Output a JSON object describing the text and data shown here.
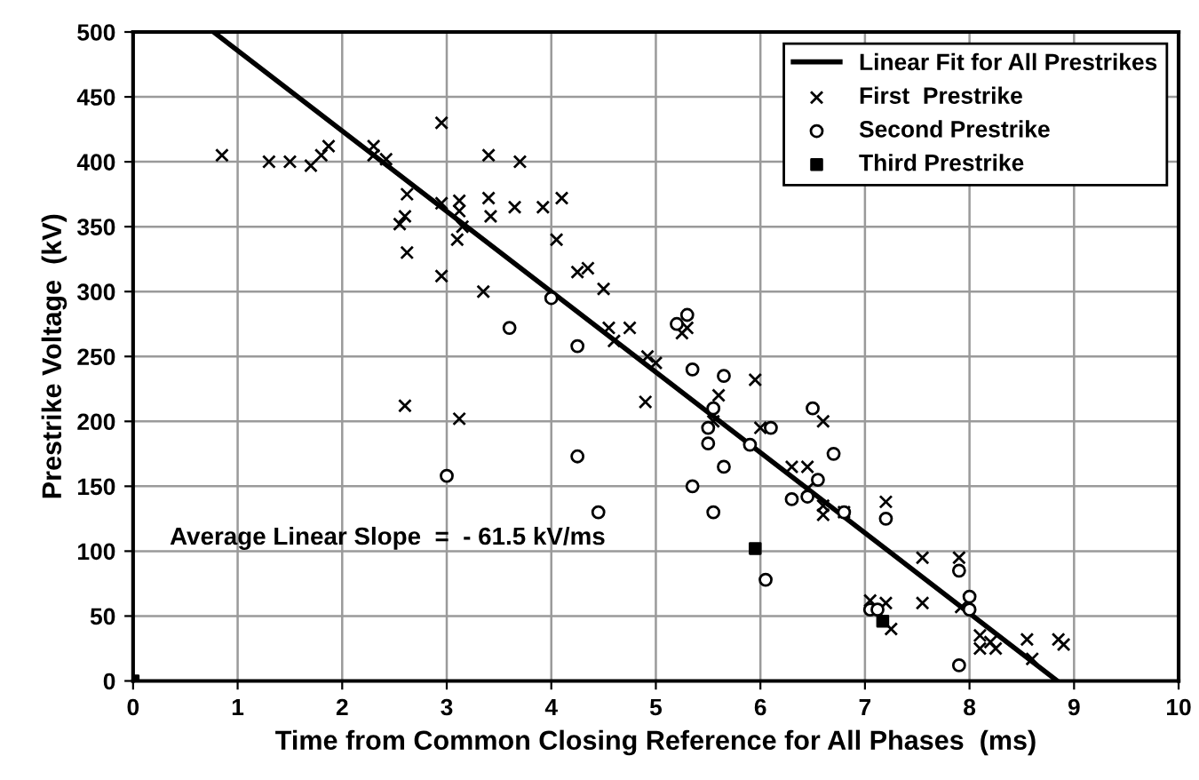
{
  "chart_data": {
    "type": "scatter",
    "xlabel": "Time from Common Closing Reference for All Phases  (ms)",
    "ylabel": "Prestrike Voltage  (kV)",
    "xlim": [
      0,
      10
    ],
    "ylim": [
      0,
      500
    ],
    "xticks": [
      0,
      1,
      2,
      3,
      4,
      5,
      6,
      7,
      8,
      9,
      10
    ],
    "yticks": [
      0,
      50,
      100,
      150,
      200,
      250,
      300,
      350,
      400,
      450,
      500
    ],
    "grid": true,
    "legend": "top right",
    "annotations": [
      "Average Linear Slope  =  - 61.5 kV/ms"
    ],
    "series": [
      {
        "name": "Linear Fit for All Prestrikes",
        "type": "line",
        "color": "#000000",
        "marker": "none",
        "line_style": "solid",
        "x": [
          0.77,
          8.84
        ],
        "values": [
          500,
          0
        ]
      },
      {
        "name": "First  Prestrike",
        "color": "#000000",
        "marker": "cross",
        "x": [
          0.85,
          1.3,
          1.5,
          1.7,
          1.8,
          1.87,
          2.3,
          2.3,
          2.42,
          2.55,
          2.6,
          2.62,
          2.62,
          2.6,
          2.95,
          2.95,
          2.95,
          3.1,
          3.12,
          3.12,
          3.15,
          3.12,
          3.35,
          3.4,
          3.4,
          3.42,
          3.7,
          3.65,
          3.92,
          4.05,
          4.1,
          4.25,
          4.35,
          4.5,
          4.55,
          4.6,
          4.75,
          4.9,
          4.92,
          5.0,
          5.25,
          5.3,
          5.55,
          5.6,
          5.95,
          6.0,
          6.3,
          6.45,
          6.6,
          6.6,
          6.6,
          6.45,
          6.8,
          7.2,
          7.05,
          7.25,
          7.2,
          7.55,
          7.55,
          7.9,
          7.92,
          8.1,
          8.1,
          8.2,
          8.25,
          8.55,
          8.6,
          8.85,
          8.9
        ],
        "values": [
          405,
          400,
          400,
          397,
          405,
          412,
          412,
          405,
          402,
          352,
          358,
          375,
          330,
          212,
          430,
          312,
          368,
          340,
          362,
          370,
          350,
          202,
          300,
          405,
          372,
          358,
          400,
          365,
          365,
          340,
          372,
          315,
          318,
          302,
          272,
          262,
          272,
          215,
          250,
          245,
          268,
          272,
          200,
          220,
          232,
          195,
          165,
          165,
          200,
          135,
          128,
          148,
          130,
          138,
          62,
          40,
          60,
          95,
          60,
          95,
          57,
          35,
          25,
          30,
          25,
          32,
          17,
          32,
          28
        ]
      },
      {
        "name": "Second Prestrike",
        "color": "#000000",
        "marker": "circle",
        "x": [
          3.0,
          3.6,
          4.0,
          4.25,
          4.25,
          4.45,
          5.2,
          5.3,
          5.35,
          5.5,
          5.5,
          5.55,
          5.35,
          5.55,
          5.65,
          5.65,
          5.9,
          6.05,
          6.1,
          6.3,
          6.45,
          6.5,
          6.7,
          6.8,
          6.55,
          7.05,
          7.12,
          7.2,
          7.9,
          7.9,
          8.0,
          8.0
        ],
        "values": [
          158,
          272,
          295,
          258,
          173,
          130,
          275,
          282,
          240,
          183,
          195,
          210,
          150,
          130,
          235,
          165,
          182,
          78,
          195,
          140,
          142,
          210,
          175,
          130,
          155,
          55,
          55,
          125,
          12,
          85,
          65,
          55
        ]
      },
      {
        "name": "Third Prestrike",
        "color": "#000000",
        "marker": "square",
        "x": [
          0,
          5.95,
          7.17
        ],
        "values": [
          0,
          102,
          46
        ]
      }
    ]
  }
}
